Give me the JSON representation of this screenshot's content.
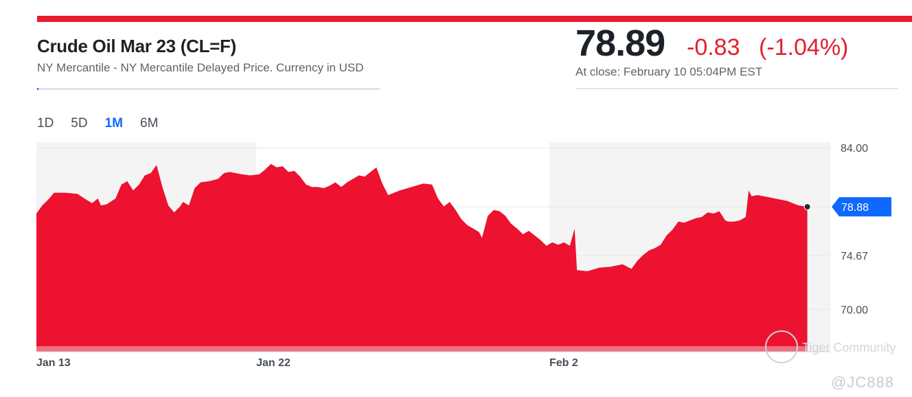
{
  "header": {
    "title": "Crude Oil Mar 23 (CL=F)",
    "subtitle": "NY Mercantile - NY Mercantile Delayed Price. Currency in USD",
    "price": "78.89",
    "change": "-0.83",
    "change_pct": "(-1.04%)",
    "close_time": "At close: February 10 05:04PM EST"
  },
  "ranges": [
    {
      "label": "1D",
      "active": false
    },
    {
      "label": "5D",
      "active": false
    },
    {
      "label": "1M",
      "active": true
    },
    {
      "label": "6M",
      "active": false
    }
  ],
  "watermark": {
    "brand": "Tiger Community",
    "user": "@JC888"
  },
  "colors": {
    "area": "#ec1230",
    "accent": "#0f69ff",
    "down": "#e1202f",
    "shade": "#f4f4f4"
  },
  "chart_data": {
    "type": "area",
    "x_ticks": [
      "Jan 13",
      "Jan 22",
      "Feb 2"
    ],
    "y_ticks": [
      84.0,
      74.67,
      70.0
    ],
    "ylim": [
      66.33,
      84.48
    ],
    "last_price_label": "78.88",
    "last_price": 78.88,
    "shaded_sessions": [
      [
        0,
        37.5
      ],
      [
        87.5,
        137.5
      ]
    ],
    "session_range": [
      0,
      131.5
    ],
    "x_tick_positions": [
      0,
      37.5,
      87.5
    ],
    "values": [
      [
        0,
        78.3
      ],
      [
        1.0,
        79.0
      ],
      [
        2.0,
        79.5
      ],
      [
        3.0,
        80.1
      ],
      [
        5.0,
        80.1
      ],
      [
        7.0,
        80.0
      ],
      [
        8.5,
        79.5
      ],
      [
        9.5,
        79.2
      ],
      [
        10.5,
        79.6
      ],
      [
        11.0,
        79.0
      ],
      [
        12.0,
        79.1
      ],
      [
        13.5,
        79.6
      ],
      [
        14.5,
        80.8
      ],
      [
        15.5,
        81.1
      ],
      [
        16.5,
        80.3
      ],
      [
        17.5,
        80.8
      ],
      [
        18.5,
        81.6
      ],
      [
        19.5,
        81.8
      ],
      [
        20.5,
        82.5
      ],
      [
        21.5,
        80.6
      ],
      [
        22.5,
        79.0
      ],
      [
        23.5,
        78.4
      ],
      [
        24.5,
        78.9
      ],
      [
        25.0,
        79.3
      ],
      [
        26.0,
        79.0
      ],
      [
        27.0,
        80.5
      ],
      [
        28.0,
        81.0
      ],
      [
        29.5,
        81.1
      ],
      [
        31.0,
        81.3
      ],
      [
        32.0,
        81.8
      ],
      [
        33.0,
        81.9
      ],
      [
        35.0,
        81.7
      ],
      [
        36.5,
        81.6
      ],
      [
        38.0,
        81.7
      ],
      [
        39.0,
        82.1
      ],
      [
        40.0,
        82.6
      ],
      [
        41.0,
        82.3
      ],
      [
        42.0,
        82.4
      ],
      [
        43.0,
        81.9
      ],
      [
        44.0,
        82.0
      ],
      [
        45.0,
        81.5
      ],
      [
        46.0,
        80.8
      ],
      [
        47.0,
        80.6
      ],
      [
        48.0,
        80.6
      ],
      [
        49.0,
        80.5
      ],
      [
        50.0,
        80.7
      ],
      [
        51.0,
        81.0
      ],
      [
        52.0,
        80.6
      ],
      [
        53.0,
        81.0
      ],
      [
        54.0,
        81.3
      ],
      [
        55.0,
        81.6
      ],
      [
        56.0,
        81.5
      ],
      [
        57.0,
        81.9
      ],
      [
        58.0,
        82.3
      ],
      [
        59.0,
        80.9
      ],
      [
        60.0,
        79.9
      ],
      [
        62.0,
        80.3
      ],
      [
        64.0,
        80.6
      ],
      [
        66.0,
        80.9
      ],
      [
        67.5,
        80.8
      ],
      [
        68.5,
        79.6
      ],
      [
        69.5,
        78.9
      ],
      [
        70.5,
        79.3
      ],
      [
        71.5,
        78.6
      ],
      [
        72.5,
        77.8
      ],
      [
        73.5,
        77.3
      ],
      [
        74.5,
        77.0
      ],
      [
        75.5,
        76.7
      ],
      [
        76.0,
        76.2
      ],
      [
        77.0,
        78.1
      ],
      [
        78.0,
        78.6
      ],
      [
        79.0,
        78.5
      ],
      [
        80.0,
        78.1
      ],
      [
        81.0,
        77.4
      ],
      [
        82.0,
        77.0
      ],
      [
        83.0,
        76.5
      ],
      [
        84.0,
        76.8
      ],
      [
        85.0,
        76.4
      ],
      [
        86.0,
        76.0
      ],
      [
        87.0,
        75.5
      ],
      [
        88.0,
        75.8
      ],
      [
        89.0,
        75.6
      ],
      [
        90.0,
        75.8
      ],
      [
        91.0,
        75.5
      ],
      [
        91.8,
        77.0
      ],
      [
        92.2,
        73.4
      ],
      [
        94.0,
        73.3
      ],
      [
        96.0,
        73.6
      ],
      [
        98.0,
        73.7
      ],
      [
        100.0,
        73.9
      ],
      [
        101.5,
        73.5
      ],
      [
        102.5,
        74.2
      ],
      [
        103.5,
        74.7
      ],
      [
        104.5,
        75.1
      ],
      [
        105.5,
        75.3
      ],
      [
        106.5,
        75.6
      ],
      [
        107.5,
        76.4
      ],
      [
        108.5,
        76.9
      ],
      [
        109.5,
        77.6
      ],
      [
        110.5,
        77.5
      ],
      [
        111.5,
        77.7
      ],
      [
        112.5,
        77.9
      ],
      [
        113.5,
        78.0
      ],
      [
        114.5,
        78.4
      ],
      [
        115.5,
        78.3
      ],
      [
        116.5,
        78.5
      ],
      [
        117.5,
        77.7
      ],
      [
        118.0,
        77.6
      ],
      [
        119.0,
        77.6
      ],
      [
        120.0,
        77.7
      ],
      [
        121.0,
        78.0
      ],
      [
        121.5,
        80.3
      ],
      [
        122.0,
        79.8
      ],
      [
        123.0,
        79.9
      ],
      [
        124.0,
        79.8
      ],
      [
        125.0,
        79.7
      ],
      [
        126.0,
        79.6
      ],
      [
        127.0,
        79.5
      ],
      [
        128.0,
        79.4
      ],
      [
        129.0,
        79.2
      ],
      [
        130.0,
        79.0
      ],
      [
        131.5,
        78.88
      ]
    ]
  }
}
